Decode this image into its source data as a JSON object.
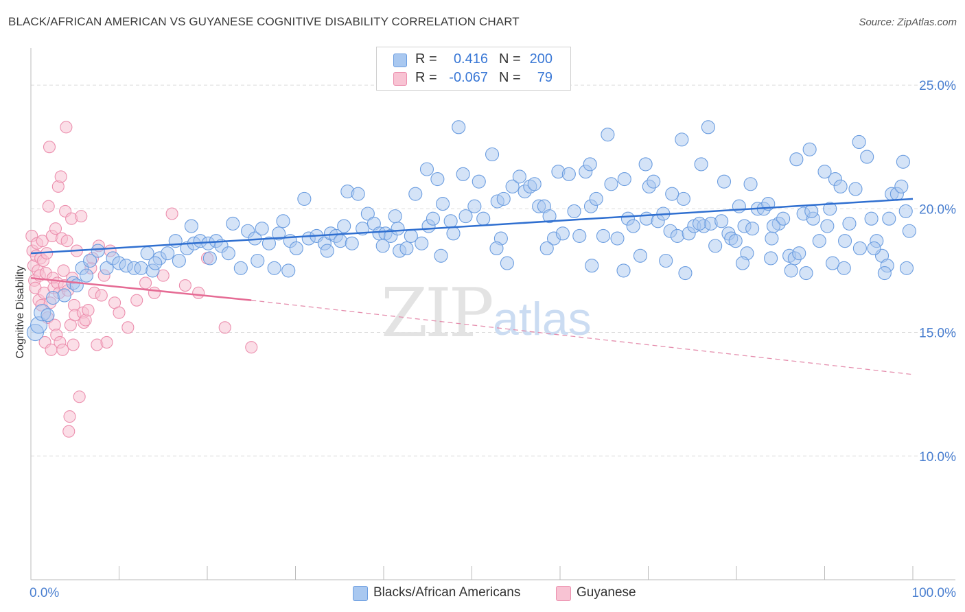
{
  "title": "BLACK/AFRICAN AMERICAN VS GUYANESE COGNITIVE DISABILITY CORRELATION CHART",
  "source": "Source: ZipAtlas.com",
  "watermark": {
    "zip": "ZIP",
    "atlas": "atlas"
  },
  "legend_top": {
    "rows": [
      {
        "r_label": "R =",
        "r_value": "0.416",
        "n_label": "N =",
        "n_value": "200",
        "color": "#a9c8f0",
        "border": "#6b9de0"
      },
      {
        "r_label": "R =",
        "r_value": "-0.067",
        "n_label": "N =",
        "n_value": "79",
        "color": "#f8c3d3",
        "border": "#ec8fae"
      }
    ]
  },
  "legend_bottom": {
    "items": [
      {
        "label": "Blacks/African Americans",
        "color": "#a9c8f0",
        "border": "#6b9de0"
      },
      {
        "label": "Guyanese",
        "color": "#f8c3d3",
        "border": "#ec8fae"
      }
    ]
  },
  "chart_data": {
    "type": "scatter",
    "title": "BLACK/AFRICAN AMERICAN VS GUYANESE COGNITIVE DISABILITY CORRELATION CHART",
    "xlabel": "",
    "ylabel": "Cognitive Disability",
    "xlim": [
      0,
      100
    ],
    "ylim": [
      5,
      26.5
    ],
    "x_ticks": [
      "0.0%",
      "100.0%"
    ],
    "y_ticks": [
      {
        "value": 25,
        "label": "25.0%"
      },
      {
        "value": 20,
        "label": "20.0%"
      },
      {
        "value": 15,
        "label": "15.0%"
      },
      {
        "value": 10,
        "label": "10.0%"
      }
    ],
    "grid": "horizontal dashed",
    "legend": "top-center",
    "series": [
      {
        "name": "Blacks/African Americans",
        "color": "#6b9de0",
        "fill": "#a9c8f0",
        "trend": {
          "x0": 0,
          "y0": 18.2,
          "x1": 100,
          "y1": 20.4,
          "color": "#2f6fd0"
        },
        "points": [
          [
            0.5,
            15.0
          ],
          [
            0.9,
            15.3
          ],
          [
            1.3,
            15.8
          ],
          [
            1.9,
            15.7
          ],
          [
            2.5,
            16.4
          ],
          [
            3.8,
            16.5
          ],
          [
            4.8,
            17.0
          ],
          [
            5.8,
            17.6
          ],
          [
            6.7,
            17.9
          ],
          [
            7.6,
            18.3
          ],
          [
            8.6,
            17.6
          ],
          [
            9.3,
            18.0
          ],
          [
            10.0,
            17.8
          ],
          [
            10.8,
            17.7
          ],
          [
            11.7,
            17.6
          ],
          [
            12.5,
            17.6
          ],
          [
            13.2,
            18.2
          ],
          [
            13.8,
            17.5
          ],
          [
            14.6,
            18.0
          ],
          [
            15.5,
            18.2
          ],
          [
            16.4,
            18.7
          ],
          [
            16.8,
            17.9
          ],
          [
            17.7,
            18.4
          ],
          [
            18.2,
            19.3
          ],
          [
            18.5,
            18.6
          ],
          [
            19.2,
            18.7
          ],
          [
            20.1,
            18.6
          ],
          [
            21.0,
            18.7
          ],
          [
            21.6,
            18.5
          ],
          [
            22.4,
            18.2
          ],
          [
            22.9,
            19.4
          ],
          [
            23.8,
            17.6
          ],
          [
            24.6,
            19.1
          ],
          [
            25.4,
            18.8
          ],
          [
            26.2,
            19.2
          ],
          [
            27.0,
            18.6
          ],
          [
            27.6,
            17.6
          ],
          [
            28.6,
            19.5
          ],
          [
            29.4,
            18.7
          ],
          [
            30.1,
            18.4
          ],
          [
            31.0,
            20.4
          ],
          [
            31.5,
            18.8
          ],
          [
            32.4,
            18.9
          ],
          [
            33.3,
            18.6
          ],
          [
            34.0,
            19.0
          ],
          [
            34.6,
            18.9
          ],
          [
            35.1,
            18.7
          ],
          [
            35.9,
            20.7
          ],
          [
            36.4,
            18.6
          ],
          [
            37.1,
            20.6
          ],
          [
            37.6,
            19.2
          ],
          [
            38.2,
            19.8
          ],
          [
            38.9,
            19.4
          ],
          [
            39.5,
            19.0
          ],
          [
            40.2,
            19.0
          ],
          [
            40.8,
            18.9
          ],
          [
            41.6,
            19.2
          ],
          [
            41.8,
            18.3
          ],
          [
            42.6,
            18.4
          ],
          [
            43.1,
            18.9
          ],
          [
            43.6,
            20.6
          ],
          [
            44.3,
            18.6
          ],
          [
            45.1,
            19.3
          ],
          [
            45.6,
            19.6
          ],
          [
            46.1,
            21.2
          ],
          [
            46.7,
            20.2
          ],
          [
            47.6,
            19.5
          ],
          [
            48.5,
            23.3
          ],
          [
            49.0,
            21.4
          ],
          [
            49.3,
            19.7
          ],
          [
            50.3,
            20.1
          ],
          [
            50.8,
            21.1
          ],
          [
            51.3,
            19.6
          ],
          [
            52.3,
            22.2
          ],
          [
            52.9,
            20.3
          ],
          [
            53.3,
            18.8
          ],
          [
            54.0,
            17.8
          ],
          [
            54.6,
            20.9
          ],
          [
            55.4,
            21.3
          ],
          [
            56.0,
            20.7
          ],
          [
            56.6,
            20.9
          ],
          [
            57.1,
            21.0
          ],
          [
            57.6,
            20.1
          ],
          [
            58.2,
            20.1
          ],
          [
            58.8,
            19.7
          ],
          [
            59.3,
            18.8
          ],
          [
            59.8,
            21.5
          ],
          [
            60.3,
            19.0
          ],
          [
            61.0,
            21.4
          ],
          [
            61.6,
            19.9
          ],
          [
            62.2,
            18.9
          ],
          [
            62.9,
            21.5
          ],
          [
            63.5,
            20.1
          ],
          [
            64.1,
            20.4
          ],
          [
            64.9,
            18.9
          ],
          [
            65.4,
            23.0
          ],
          [
            65.8,
            21.0
          ],
          [
            66.5,
            18.8
          ],
          [
            67.3,
            21.2
          ],
          [
            67.7,
            19.6
          ],
          [
            68.3,
            19.3
          ],
          [
            69.1,
            18.1
          ],
          [
            69.8,
            19.6
          ],
          [
            70.1,
            20.9
          ],
          [
            70.6,
            21.1
          ],
          [
            71.1,
            19.5
          ],
          [
            71.7,
            19.8
          ],
          [
            72.5,
            19.1
          ],
          [
            73.3,
            18.9
          ],
          [
            73.8,
            22.8
          ],
          [
            74.0,
            20.4
          ],
          [
            74.6,
            19.0
          ],
          [
            75.2,
            19.3
          ],
          [
            76.0,
            21.8
          ],
          [
            76.3,
            19.3
          ],
          [
            76.8,
            23.3
          ],
          [
            77.1,
            19.4
          ],
          [
            77.6,
            18.5
          ],
          [
            78.3,
            19.5
          ],
          [
            79.1,
            19.0
          ],
          [
            79.4,
            18.8
          ],
          [
            79.9,
            18.7
          ],
          [
            80.3,
            20.1
          ],
          [
            80.9,
            19.3
          ],
          [
            81.6,
            21.0
          ],
          [
            81.8,
            19.2
          ],
          [
            82.4,
            20.0
          ],
          [
            83.1,
            20.0
          ],
          [
            83.6,
            20.2
          ],
          [
            84.0,
            18.8
          ],
          [
            84.8,
            19.4
          ],
          [
            85.3,
            19.6
          ],
          [
            86.0,
            18.1
          ],
          [
            86.6,
            18.0
          ],
          [
            87.1,
            18.2
          ],
          [
            87.6,
            19.8
          ],
          [
            88.3,
            22.4
          ],
          [
            88.7,
            19.6
          ],
          [
            89.4,
            18.7
          ],
          [
            90.0,
            21.5
          ],
          [
            90.6,
            20.0
          ],
          [
            91.2,
            21.2
          ],
          [
            91.8,
            20.9
          ],
          [
            92.2,
            17.6
          ],
          [
            92.8,
            19.4
          ],
          [
            93.5,
            20.8
          ],
          [
            94.0,
            18.4
          ],
          [
            94.8,
            22.1
          ],
          [
            95.3,
            19.6
          ],
          [
            95.9,
            18.7
          ],
          [
            96.5,
            18.1
          ],
          [
            97.1,
            17.7
          ],
          [
            97.6,
            20.6
          ],
          [
            98.2,
            20.6
          ],
          [
            98.7,
            20.9
          ],
          [
            99.3,
            17.6
          ],
          [
            99.6,
            19.1
          ],
          [
            35.5,
            19.3
          ],
          [
            41.3,
            19.7
          ],
          [
            44.9,
            21.6
          ],
          [
            53.6,
            20.4
          ],
          [
            47.9,
            19.0
          ],
          [
            63.4,
            21.8
          ],
          [
            69.7,
            21.8
          ],
          [
            72.7,
            20.6
          ],
          [
            75.8,
            19.4
          ],
          [
            78.6,
            21.1
          ],
          [
            81.2,
            18.2
          ],
          [
            84.2,
            19.3
          ],
          [
            86.8,
            22.0
          ],
          [
            88.5,
            19.9
          ],
          [
            90.3,
            19.3
          ],
          [
            92.3,
            18.7
          ],
          [
            93.9,
            22.7
          ],
          [
            95.6,
            18.4
          ],
          [
            96.8,
            17.4
          ],
          [
            97.3,
            19.6
          ],
          [
            98.9,
            21.9
          ],
          [
            99.2,
            19.9
          ],
          [
            90.9,
            17.8
          ],
          [
            87.9,
            17.4
          ],
          [
            86.2,
            17.5
          ],
          [
            74.2,
            17.4
          ],
          [
            67.2,
            17.5
          ],
          [
            63.6,
            17.7
          ],
          [
            58.5,
            18.4
          ],
          [
            52.8,
            18.4
          ],
          [
            46.5,
            18.1
          ],
          [
            39.9,
            18.5
          ],
          [
            33.6,
            18.3
          ],
          [
            29.2,
            17.5
          ],
          [
            25.7,
            17.9
          ],
          [
            20.3,
            18.0
          ],
          [
            14.1,
            17.8
          ],
          [
            5.2,
            16.9
          ],
          [
            6.3,
            17.3
          ],
          [
            28.1,
            19.0
          ],
          [
            72.0,
            17.9
          ],
          [
            80.7,
            17.8
          ],
          [
            83.9,
            18.0
          ]
        ]
      },
      {
        "name": "Guyanese",
        "color": "#ec8fae",
        "fill": "#f8c3d3",
        "trend_solid": {
          "x0": 0,
          "y0": 17.2,
          "x1": 25,
          "y1": 16.3,
          "color": "#e56b94"
        },
        "trend_dashed": {
          "x0": 25,
          "y0": 16.3,
          "x1": 100,
          "y1": 13.3,
          "color": "#e58fae"
        },
        "points": [
          [
            0.1,
            18.9
          ],
          [
            0.2,
            18.3
          ],
          [
            0.3,
            17.7
          ],
          [
            0.4,
            17.1
          ],
          [
            0.5,
            16.8
          ],
          [
            0.6,
            18.1
          ],
          [
            0.7,
            18.6
          ],
          [
            0.8,
            17.5
          ],
          [
            0.9,
            16.3
          ],
          [
            1.0,
            17.3
          ],
          [
            1.1,
            18.0
          ],
          [
            1.2,
            16.1
          ],
          [
            1.3,
            18.7
          ],
          [
            1.4,
            17.9
          ],
          [
            1.5,
            16.6
          ],
          [
            1.6,
            14.6
          ],
          [
            1.7,
            17.4
          ],
          [
            1.8,
            18.2
          ],
          [
            1.9,
            15.6
          ],
          [
            2.0,
            20.1
          ],
          [
            2.1,
            22.5
          ],
          [
            2.2,
            16.2
          ],
          [
            2.3,
            14.3
          ],
          [
            2.4,
            18.9
          ],
          [
            2.5,
            17.2
          ],
          [
            2.6,
            16.8
          ],
          [
            2.7,
            15.3
          ],
          [
            2.8,
            19.2
          ],
          [
            2.9,
            14.9
          ],
          [
            3.0,
            17.0
          ],
          [
            3.1,
            20.9
          ],
          [
            3.2,
            16.6
          ],
          [
            3.3,
            14.6
          ],
          [
            3.4,
            21.3
          ],
          [
            3.5,
            18.8
          ],
          [
            3.6,
            14.3
          ],
          [
            3.7,
            17.5
          ],
          [
            3.8,
            16.9
          ],
          [
            3.9,
            19.9
          ],
          [
            4.0,
            23.3
          ],
          [
            4.1,
            18.7
          ],
          [
            4.2,
            16.7
          ],
          [
            4.3,
            11.0
          ],
          [
            4.4,
            11.6
          ],
          [
            4.5,
            15.3
          ],
          [
            4.6,
            19.6
          ],
          [
            4.7,
            17.2
          ],
          [
            4.8,
            14.5
          ],
          [
            4.9,
            16.1
          ],
          [
            5.0,
            15.7
          ],
          [
            5.2,
            18.3
          ],
          [
            5.5,
            12.4
          ],
          [
            5.7,
            19.7
          ],
          [
            5.9,
            15.8
          ],
          [
            6.0,
            15.4
          ],
          [
            6.2,
            15.5
          ],
          [
            6.5,
            15.9
          ],
          [
            6.8,
            17.6
          ],
          [
            7.0,
            18.0
          ],
          [
            7.2,
            16.6
          ],
          [
            7.5,
            14.5
          ],
          [
            7.7,
            18.5
          ],
          [
            8.0,
            16.5
          ],
          [
            8.3,
            17.3
          ],
          [
            8.6,
            14.6
          ],
          [
            9.0,
            18.3
          ],
          [
            9.5,
            16.2
          ],
          [
            10.0,
            15.8
          ],
          [
            11.0,
            15.2
          ],
          [
            12.0,
            16.3
          ],
          [
            13.0,
            17.0
          ],
          [
            14.0,
            16.6
          ],
          [
            15.0,
            17.3
          ],
          [
            16.0,
            19.8
          ],
          [
            17.5,
            16.9
          ],
          [
            19.0,
            16.6
          ],
          [
            20.0,
            18.0
          ],
          [
            22.0,
            15.2
          ],
          [
            25.0,
            14.4
          ]
        ]
      }
    ]
  }
}
